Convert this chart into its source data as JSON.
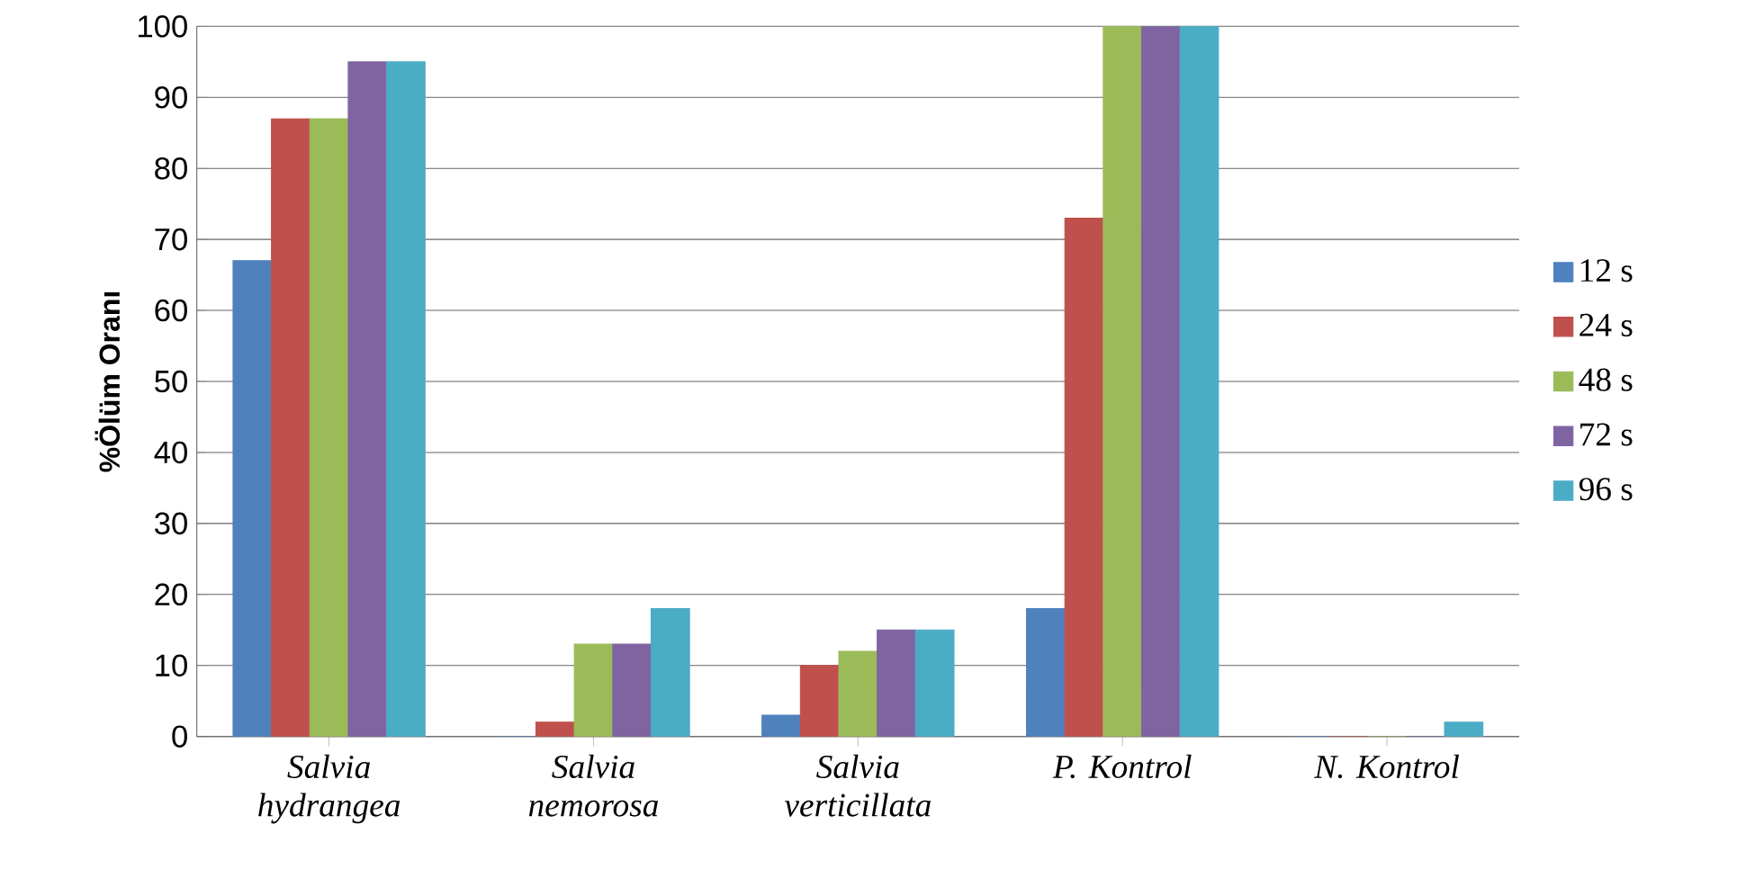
{
  "chart_data": {
    "type": "bar",
    "ylabel": "%Ölüm Oranı",
    "categories": [
      "Salvia hydrangea",
      "Salvia nemorosa",
      "Salvia verticillata",
      "P. Kontrol",
      "N. Kontrol"
    ],
    "series": [
      {
        "name": "12 s",
        "color": "#4f81bd",
        "values": [
          67,
          0,
          3,
          18,
          0
        ]
      },
      {
        "name": "24 s",
        "color": "#c0504d",
        "values": [
          87,
          2,
          10,
          73,
          0
        ]
      },
      {
        "name": "48 s",
        "color": "#9bbb59",
        "values": [
          87,
          13,
          12,
          100,
          0
        ]
      },
      {
        "name": "72 s",
        "color": "#8064a2",
        "values": [
          95,
          13,
          15,
          100,
          0
        ]
      },
      {
        "name": "96 s",
        "color": "#4bacc6",
        "values": [
          95,
          18,
          15,
          100,
          2
        ]
      }
    ],
    "ylim": [
      0,
      100
    ],
    "yticks": [
      0,
      10,
      20,
      30,
      40,
      50,
      60,
      70,
      80,
      90,
      100
    ],
    "grid": "y",
    "legend": "right"
  }
}
